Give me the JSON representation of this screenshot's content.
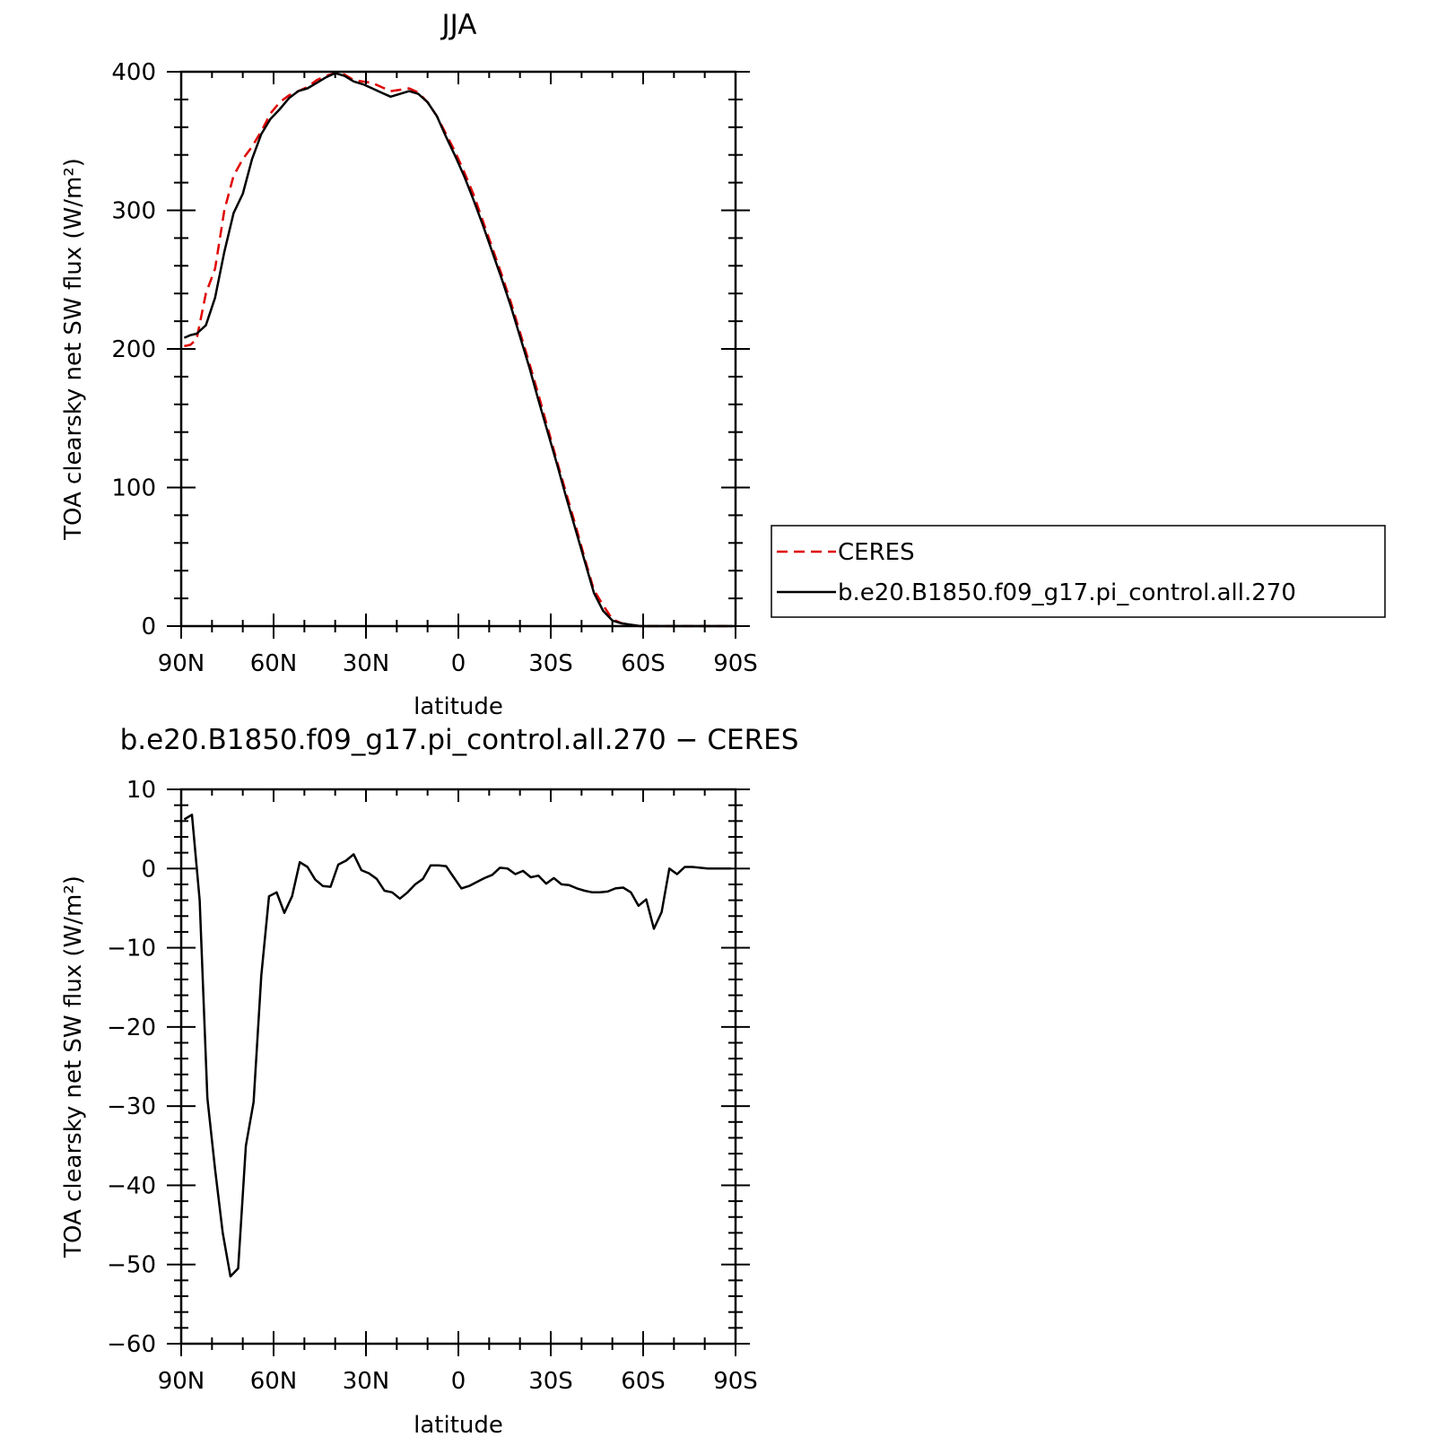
{
  "chart_data": [
    {
      "type": "line",
      "title": "JJA",
      "xlabel": "latitude",
      "ylabel": "TOA clearsky net SW flux (W/m²)",
      "xlim": [
        90,
        -90
      ],
      "ylim": [
        0,
        400
      ],
      "x_ticks": [
        90,
        60,
        30,
        0,
        -30,
        -60,
        -90
      ],
      "x_tick_labels": [
        "90N",
        "60N",
        "30N",
        "0",
        "30S",
        "60S",
        "90S"
      ],
      "y_ticks": [
        0,
        100,
        200,
        300,
        400
      ],
      "y_tick_labels": [
        "0",
        "100",
        "200",
        "300",
        "400"
      ],
      "legend": {
        "placement": "right",
        "entries": [
          {
            "label": "CERES",
            "color": "#e00000",
            "dash": "dashed"
          },
          {
            "label": "b.e20.B1850.f09_g17.pi_control.all.270",
            "color": "#000000",
            "dash": "solid"
          }
        ]
      },
      "series": [
        {
          "name": "CERES",
          "color": "#e00000",
          "dash": "dashed",
          "x": [
            89,
            87,
            85,
            82,
            79,
            76,
            73,
            70,
            67,
            64,
            61,
            58,
            55,
            52,
            49,
            46,
            43,
            40,
            37,
            34,
            31,
            28,
            25,
            22,
            19,
            16,
            13,
            10,
            7,
            4,
            1,
            -2,
            -5,
            -8,
            -11,
            -14,
            -17,
            -20,
            -23,
            -26,
            -29,
            -32,
            -35,
            -38,
            -41,
            -44,
            -47,
            -50,
            -53,
            -56,
            -59,
            -62,
            -65,
            -68,
            -71,
            -74,
            -77,
            -80,
            -83,
            -86,
            -89
          ],
          "values": [
            202,
            203,
            207,
            240,
            258,
            300,
            325,
            337,
            346,
            357,
            370,
            378,
            383,
            386,
            389,
            394,
            397,
            399,
            398,
            394,
            393,
            392,
            389,
            386,
            387,
            388,
            385,
            378,
            368,
            355,
            342,
            327,
            311,
            292,
            273,
            254,
            234,
            212,
            190,
            167,
            143,
            119,
            96,
            73,
            49,
            26,
            15,
            5,
            2,
            1,
            0,
            0,
            0,
            0,
            0,
            0,
            0,
            0,
            0,
            0,
            0
          ]
        },
        {
          "name": "b.e20.B1850.f09_g17.pi_control.all.270",
          "color": "#000000",
          "dash": "solid",
          "x": [
            89,
            87,
            85,
            82,
            79,
            76,
            73,
            70,
            67,
            64,
            61,
            58,
            55,
            52,
            49,
            46,
            43,
            40,
            37,
            34,
            31,
            28,
            25,
            22,
            19,
            16,
            13,
            10,
            7,
            4,
            1,
            -2,
            -5,
            -8,
            -11,
            -14,
            -17,
            -20,
            -23,
            -26,
            -29,
            -32,
            -35,
            -38,
            -41,
            -44,
            -47,
            -50,
            -53,
            -56,
            -59,
            -62,
            -65,
            -68,
            -71,
            -74,
            -77,
            -80,
            -83,
            -86,
            -89
          ],
          "values": [
            208,
            210,
            211,
            217,
            237,
            270,
            298,
            312,
            337,
            355,
            366,
            373,
            381,
            386,
            388,
            392,
            396,
            399,
            397,
            393,
            391,
            388,
            385,
            382,
            384,
            386,
            384,
            378,
            368,
            353,
            339,
            324,
            307,
            289,
            270,
            251,
            231,
            209,
            187,
            163,
            140,
            117,
            93,
            70,
            47,
            24,
            11,
            4,
            2,
            1,
            0,
            0,
            0,
            0,
            0,
            0,
            0,
            0,
            0,
            0,
            0
          ]
        }
      ]
    },
    {
      "type": "line",
      "title": "b.e20.B1850.f09_g17.pi_control.all.270 − CERES",
      "xlabel": "latitude",
      "ylabel": "TOA clearsky net SW flux (W/m²)",
      "xlim": [
        90,
        -90
      ],
      "ylim": [
        -60,
        10
      ],
      "x_ticks": [
        90,
        60,
        30,
        0,
        -30,
        -60,
        -90
      ],
      "x_tick_labels": [
        "90N",
        "60N",
        "30N",
        "0",
        "30S",
        "60S",
        "90S"
      ],
      "y_ticks": [
        10,
        0,
        -10,
        -20,
        -30,
        -40,
        -50,
        -60
      ],
      "y_tick_labels": [
        "10",
        "0",
        "−10",
        "−20",
        "−30",
        "−40",
        "−50",
        "−60"
      ],
      "series": [
        {
          "color": "#000000",
          "dash": "solid",
          "x": [
            89,
            86.5,
            84,
            81.5,
            79,
            76.5,
            74,
            71.5,
            69,
            66.5,
            64,
            61.5,
            59,
            56.5,
            54,
            51.5,
            49,
            46.5,
            44,
            41.5,
            39,
            36.5,
            34,
            31.5,
            29,
            26.5,
            24,
            21.5,
            19,
            16.5,
            14,
            11.5,
            9,
            6.5,
            4,
            1.5,
            -1,
            -3.5,
            -6,
            -8.5,
            -11,
            -13.5,
            -16,
            -18.5,
            -21,
            -23.5,
            -26,
            -28.5,
            -31,
            -33.5,
            -36,
            -38.5,
            -41,
            -43.5,
            -46,
            -48.5,
            -51,
            -53.5,
            -56,
            -58.5,
            -61,
            -63.5,
            -66,
            -68.5,
            -71,
            -73.5,
            -76,
            -78.5,
            -81,
            -83.5,
            -86,
            -88.5
          ],
          "values": [
            6.2,
            6.8,
            -4.0,
            -29.0,
            -38.0,
            -46.0,
            -51.5,
            -50.5,
            -35.0,
            -29.5,
            -13.5,
            -3.5,
            -3.0,
            -5.6,
            -3.5,
            0.8,
            0.2,
            -1.4,
            -2.2,
            -2.3,
            0.5,
            1.0,
            1.8,
            -0.2,
            -0.6,
            -1.3,
            -2.8,
            -3.0,
            -3.8,
            -3.0,
            -2.0,
            -1.3,
            0.4,
            0.4,
            0.3,
            -1.1,
            -2.5,
            -2.2,
            -1.7,
            -1.2,
            -0.8,
            0.1,
            0.0,
            -0.7,
            -0.3,
            -1.1,
            -0.9,
            -1.9,
            -1.2,
            -2.0,
            -2.1,
            -2.5,
            -2.8,
            -3.0,
            -3.0,
            -2.9,
            -2.5,
            -2.4,
            -3.0,
            -4.7,
            -3.9,
            -7.6,
            -5.5,
            0.0,
            -0.7,
            0.2,
            0.2,
            0.1,
            0.0,
            0.0,
            0.0,
            0.0
          ]
        }
      ]
    }
  ]
}
